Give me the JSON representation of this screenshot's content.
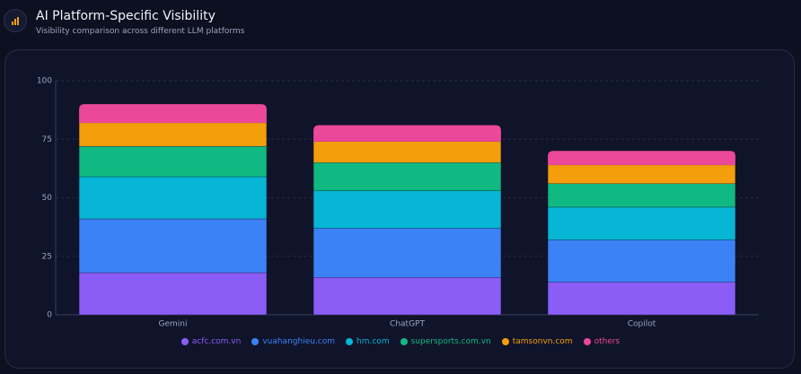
{
  "chart_data": {
    "type": "stacked-bar",
    "title": "AI Platform-Specific Visibility",
    "subtitle": "Visibility comparison across different LLM platforms",
    "categories": [
      "Gemini",
      "ChatGPT",
      "Copilot"
    ],
    "series": [
      {
        "name": "acfc.com.vn",
        "color": "#8b5cf6",
        "values": [
          18,
          16,
          14
        ]
      },
      {
        "name": "vuahanghieu.com",
        "color": "#3b82f6",
        "values": [
          23,
          21,
          18
        ]
      },
      {
        "name": "hm.com",
        "color": "#06b6d4",
        "values": [
          18,
          16,
          14
        ]
      },
      {
        "name": "supersports.com.vn",
        "color": "#10b981",
        "values": [
          13,
          12,
          10
        ]
      },
      {
        "name": "tamsonvn.com",
        "color": "#f59e0b",
        "values": [
          10,
          9,
          8
        ]
      },
      {
        "name": "others",
        "color": "#ec4899",
        "values": [
          8,
          7,
          6
        ]
      }
    ],
    "ylim": [
      0,
      100
    ],
    "yticks": [
      0,
      25,
      50,
      75,
      100
    ],
    "grid": true
  }
}
